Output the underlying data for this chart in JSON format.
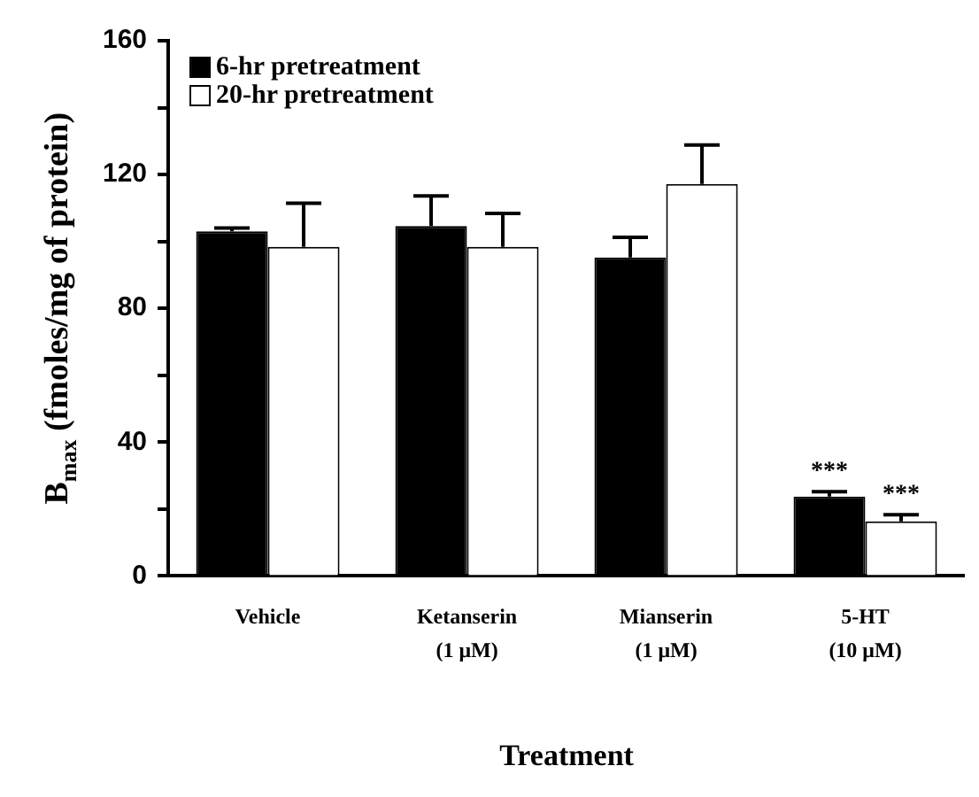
{
  "chart_data": {
    "type": "bar",
    "xlabel": "Treatment",
    "ylabel": "B$_{max}$ (fmoles/mg of protein)",
    "categories": [
      "Vehicle",
      "Ketanserin\n(1 μM)",
      "Mianserin\n(1 μM)",
      "5-HT\n(10 μM)"
    ],
    "series": [
      {
        "name": "6-hr pretreatment",
        "color": "#000000",
        "values": [
          103,
          104.6,
          95.2,
          23.7
        ],
        "errors": [
          [
            103,
            104
          ],
          [
            104.6,
            113.6
          ],
          [
            95.2,
            101.2
          ],
          [
            23.7,
            25.2
          ]
        ]
      },
      {
        "name": "20-hr pretreatment",
        "color": "#ffffff",
        "values": [
          98.4,
          98.4,
          117.2,
          16.3
        ],
        "errors": [
          [
            98.4,
            111.4
          ],
          [
            98.4,
            108.4
          ],
          [
            117.2,
            128.8
          ],
          [
            16.3,
            18.3
          ]
        ]
      }
    ],
    "annotations": [
      {
        "text": "***",
        "x": "5-HT\n(10 μM)",
        "y": 25.2
      },
      {
        "text": "***",
        "x": "5-HT\n(10 μM)",
        "y": 18.3
      }
    ],
    "ylim": [
      0,
      160
    ],
    "yticks": [
      0,
      {
        "value": 20,
        "label": null
      },
      40,
      {
        "value": 60,
        "label": null
      },
      80,
      {
        "value": 100,
        "label": null
      },
      120,
      {
        "value": 140,
        "label": null
      },
      160
    ],
    "grid": false,
    "legend": "top left"
  }
}
